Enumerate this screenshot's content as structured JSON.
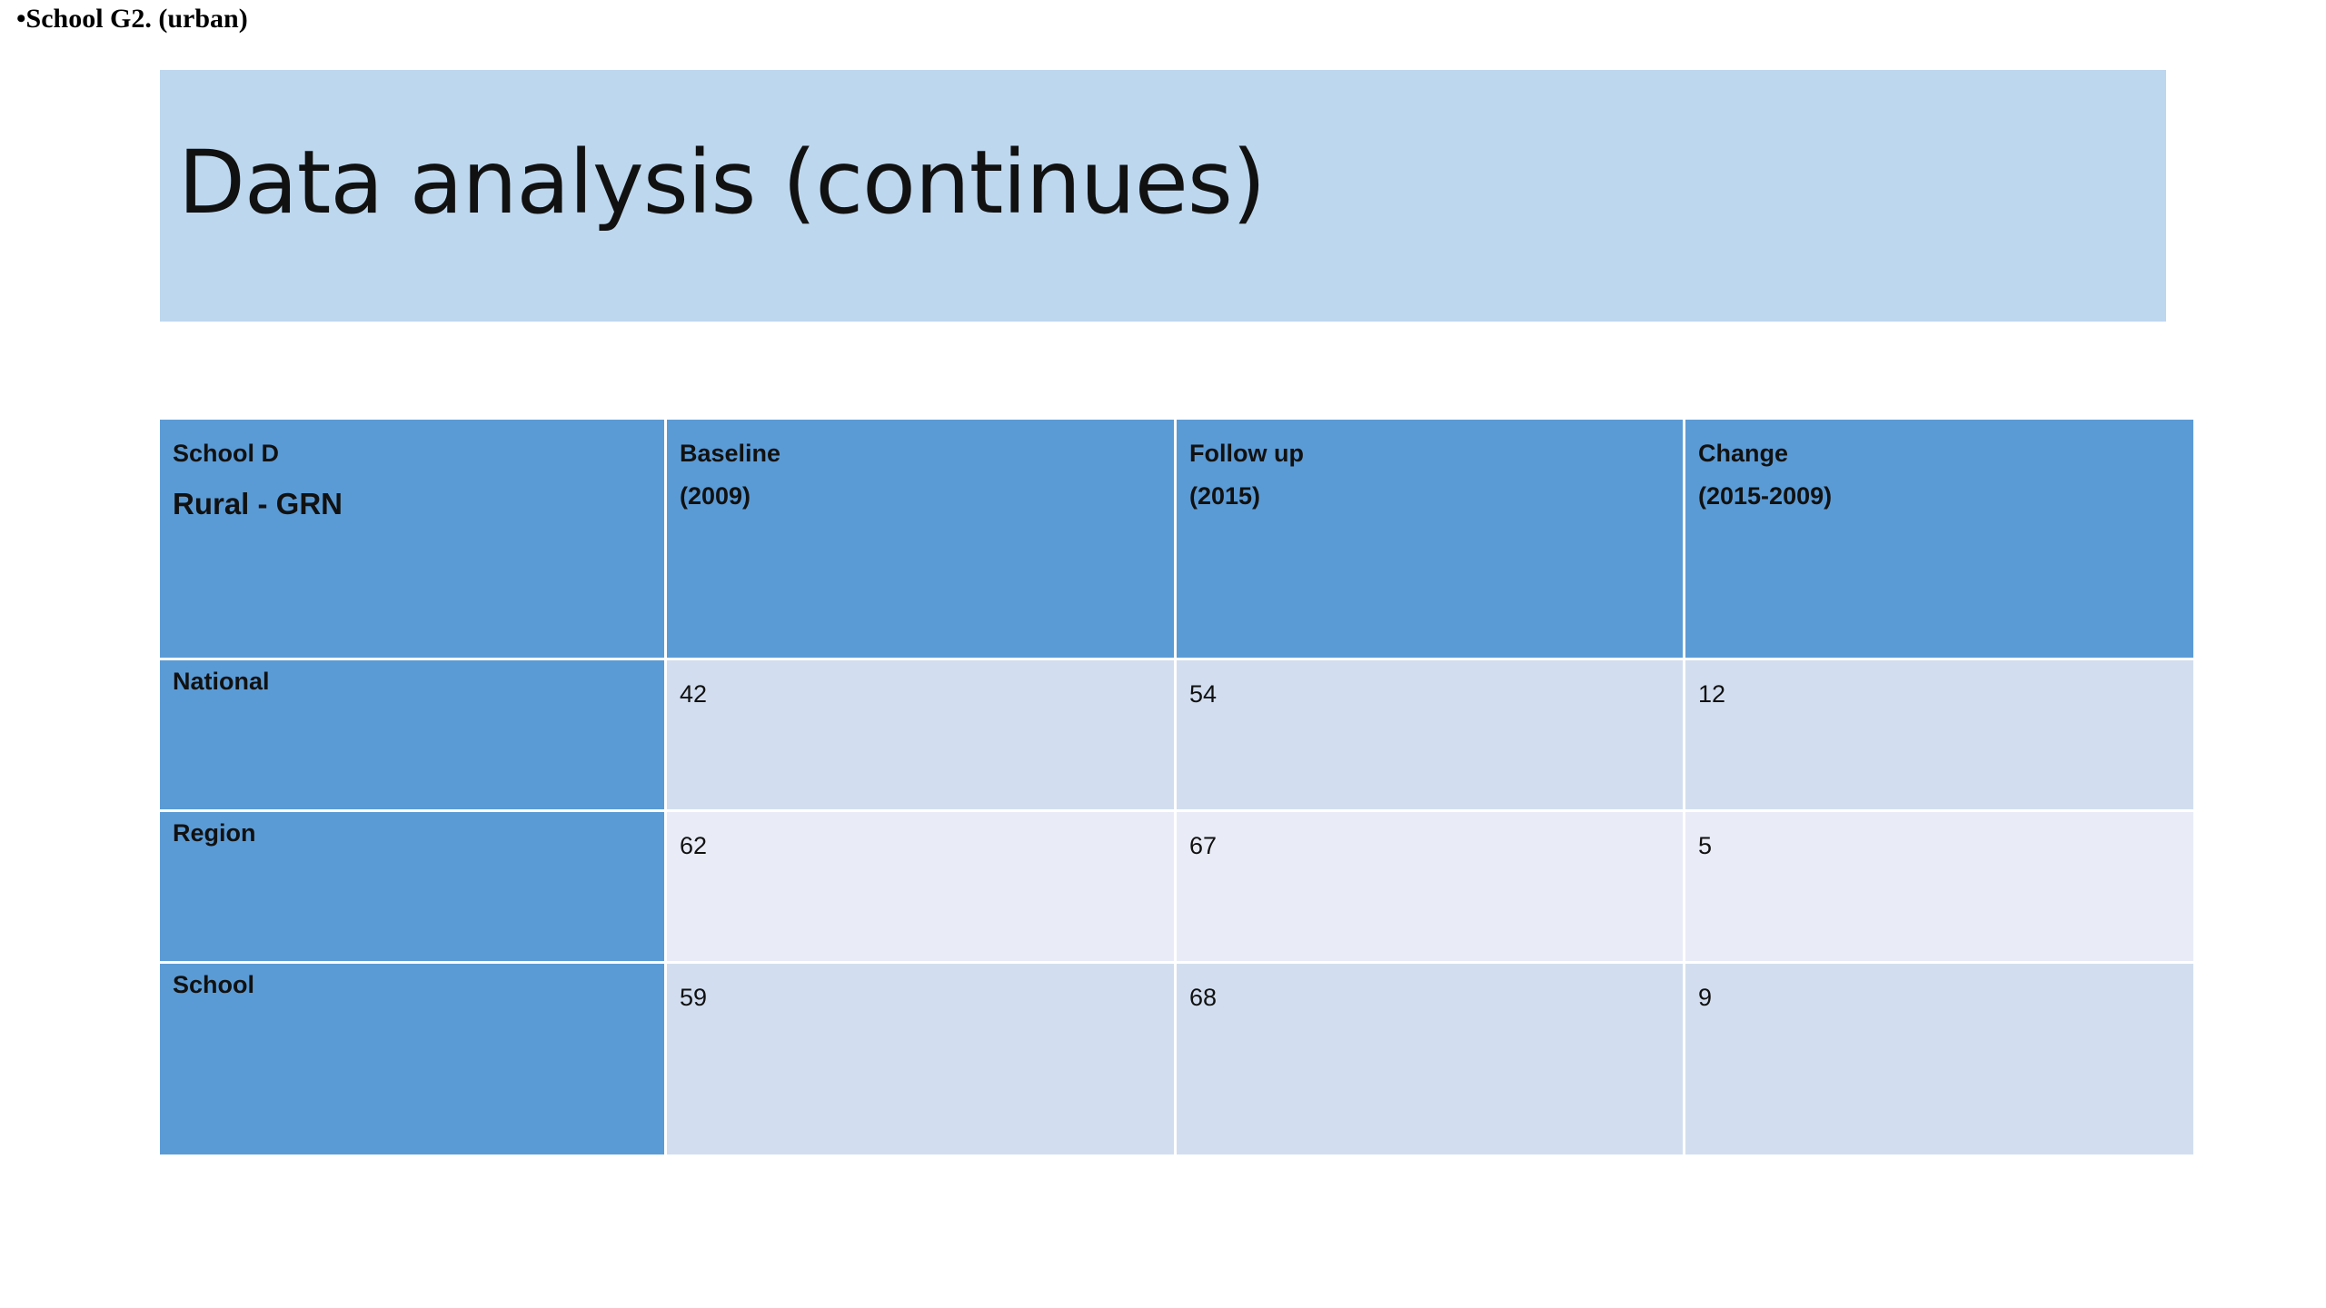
{
  "note": "•School G2. (urban)",
  "title": "Data analysis (continues)",
  "table": {
    "header": [
      [
        "School D",
        "Rural - GRN"
      ],
      [
        "Baseline",
        "(2009)"
      ],
      [
        "Follow up",
        "(2015)"
      ],
      [
        "Change",
        "(2015-2009)"
      ]
    ],
    "rows": [
      [
        "National",
        42,
        54,
        12
      ],
      [
        "Region",
        62,
        67,
        5
      ],
      [
        "School",
        59,
        68,
        9
      ]
    ]
  }
}
